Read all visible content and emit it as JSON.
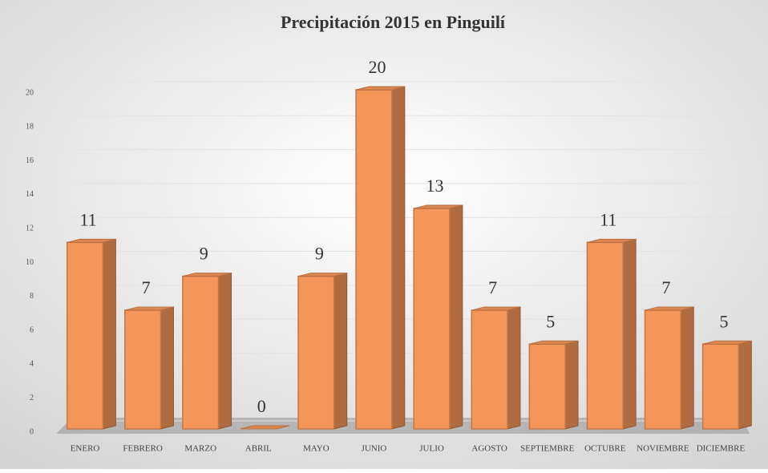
{
  "chart_data": {
    "type": "bar3d",
    "title": "Precipitación 2015 en Pinguilí",
    "categories": [
      "ENERO",
      "FEBRERO",
      "MARZO",
      "ABRIL",
      "MAYO",
      "JUNIO",
      "JULIO",
      "AGOSTO",
      "SEPTIEMBRE",
      "OCTUBRE",
      "NOVIEMBRE",
      "DICIEMBRE"
    ],
    "values": [
      11,
      7,
      9,
      0,
      9,
      20,
      13,
      7,
      5,
      11,
      7,
      5
    ],
    "color": "#f4955a",
    "ylim": [
      0,
      20
    ],
    "yticks": [
      0,
      2,
      4,
      6,
      8,
      10,
      12,
      14,
      16,
      18,
      20
    ],
    "grid": true
  }
}
